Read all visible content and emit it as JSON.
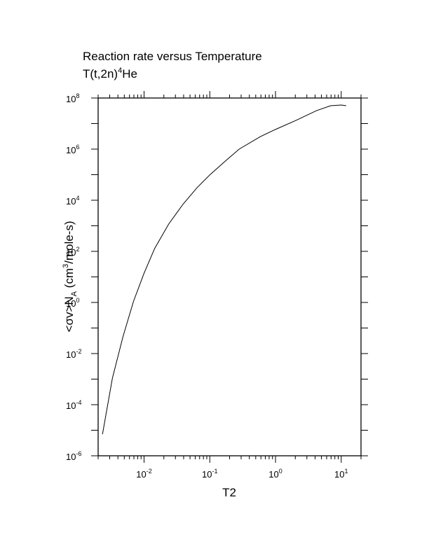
{
  "chart_data": {
    "type": "line",
    "title": "Reaction rate versus Temperature",
    "subtitle": [
      "T(t,2n)",
      "4",
      "He"
    ],
    "xlabel": "T2",
    "ylabel": [
      "<σv>N",
      "A",
      " (cm",
      "3",
      "/mole-s)"
    ],
    "xscale": "log",
    "yscale": "log",
    "xlim": [
      0.002,
      20
    ],
    "ylim": [
      1e-06,
      100000000.0
    ],
    "xticks": [
      {
        "value": 0.01,
        "base": "10",
        "exponent": "-2"
      },
      {
        "value": 0.1,
        "base": "10",
        "exponent": "-1"
      },
      {
        "value": 1,
        "base": "10",
        "exponent": "0"
      },
      {
        "value": 10,
        "base": "10",
        "exponent": "1"
      }
    ],
    "xminorticks": [
      0.002,
      0.003,
      0.004,
      0.005,
      0.006,
      0.007,
      0.008,
      0.009,
      0.02,
      0.03,
      0.04,
      0.05,
      0.06,
      0.07,
      0.08,
      0.09,
      0.2,
      0.3,
      0.4,
      0.5,
      0.6,
      0.7,
      0.8,
      0.9,
      2,
      3,
      4,
      5,
      6,
      7,
      8,
      9,
      20
    ],
    "yticks": [
      {
        "value": 1e-06,
        "base": "10",
        "exponent": "-6"
      },
      {
        "value": 0.0001,
        "base": "10",
        "exponent": "-4"
      },
      {
        "value": 0.01,
        "base": "10",
        "exponent": "-2"
      },
      {
        "value": 1,
        "base": "10",
        "exponent": "0"
      },
      {
        "value": 100,
        "base": "10",
        "exponent": "2"
      },
      {
        "value": 10000,
        "base": "10",
        "exponent": "4"
      },
      {
        "value": 1000000,
        "base": "10",
        "exponent": "6"
      },
      {
        "value": 100000000,
        "base": "10",
        "exponent": "8"
      }
    ],
    "yminorticks": [
      1e-05,
      0.001,
      0.1,
      10,
      1000,
      100000,
      10000000
    ],
    "color": "#000000",
    "x": [
      0.00233,
      0.0033,
      0.0048,
      0.0069,
      0.01,
      0.0145,
      0.0237,
      0.039,
      0.064,
      0.1,
      0.172,
      0.28,
      0.59,
      1,
      2.05,
      4.2,
      6.9,
      10,
      11.9
    ],
    "values": [
      7e-06,
      0.0011,
      0.048,
      1.1,
      14,
      130,
      1170,
      6900,
      31000,
      98000,
      340000,
      1000000,
      3100000,
      5900000,
      13300000,
      32000000,
      50000000,
      53000000,
      50000000
    ]
  }
}
